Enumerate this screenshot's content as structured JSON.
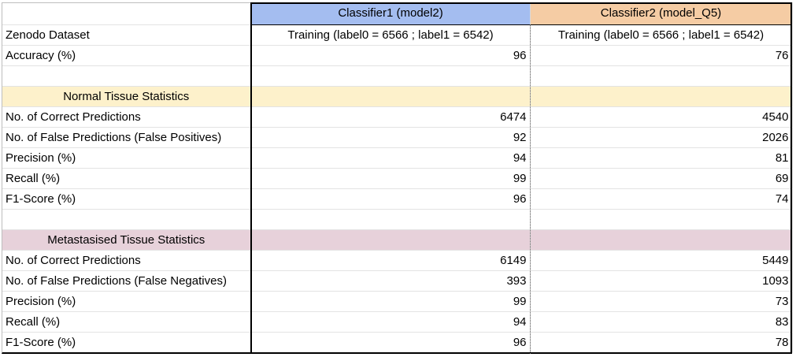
{
  "header": {
    "col1": "",
    "col2": "Classifier1 (model2)",
    "col3": "Classifier2 (model_Q5)"
  },
  "dataset_row": {
    "label": "Zenodo Dataset",
    "col2": "Training (label0 = 6566 ; label1 = 6542)",
    "col3": "Training (label0 = 6566 ; label1 = 6542)"
  },
  "accuracy_row": {
    "label": "Accuracy (%)",
    "col2": "96",
    "col3": "76"
  },
  "normal": {
    "section_title": "Normal Tissue Statistics",
    "rows": [
      {
        "label": "No. of Correct Predictions",
        "col2": "6474",
        "col3": "4540"
      },
      {
        "label": "No. of False Predictions (False Positives)",
        "col2": "92",
        "col3": "2026"
      },
      {
        "label": "Precision (%)",
        "col2": "94",
        "col3": "81"
      },
      {
        "label": "Recall (%)",
        "col2": "99",
        "col3": "69"
      },
      {
        "label": "F1-Score (%)",
        "col2": "96",
        "col3": "74"
      }
    ]
  },
  "metastasised": {
    "section_title": "Metastasised Tissue Statistics",
    "rows": [
      {
        "label": "No. of Correct Predictions",
        "col2": "6149",
        "col3": "5449"
      },
      {
        "label": "No. of False Predictions (False Negatives)",
        "col2": "393",
        "col3": "1093"
      },
      {
        "label": "Precision (%)",
        "col2": "99",
        "col3": "73"
      },
      {
        "label": "Recall (%)",
        "col2": "94",
        "col3": "83"
      },
      {
        "label": "F1-Score (%)",
        "col2": "96",
        "col3": "78"
      }
    ]
  },
  "colors": {
    "classifier1_header": "#a4bdf0",
    "classifier2_header": "#f5cca4",
    "normal_section": "#fdf1cb",
    "metastasised_section": "#e7d1da"
  }
}
